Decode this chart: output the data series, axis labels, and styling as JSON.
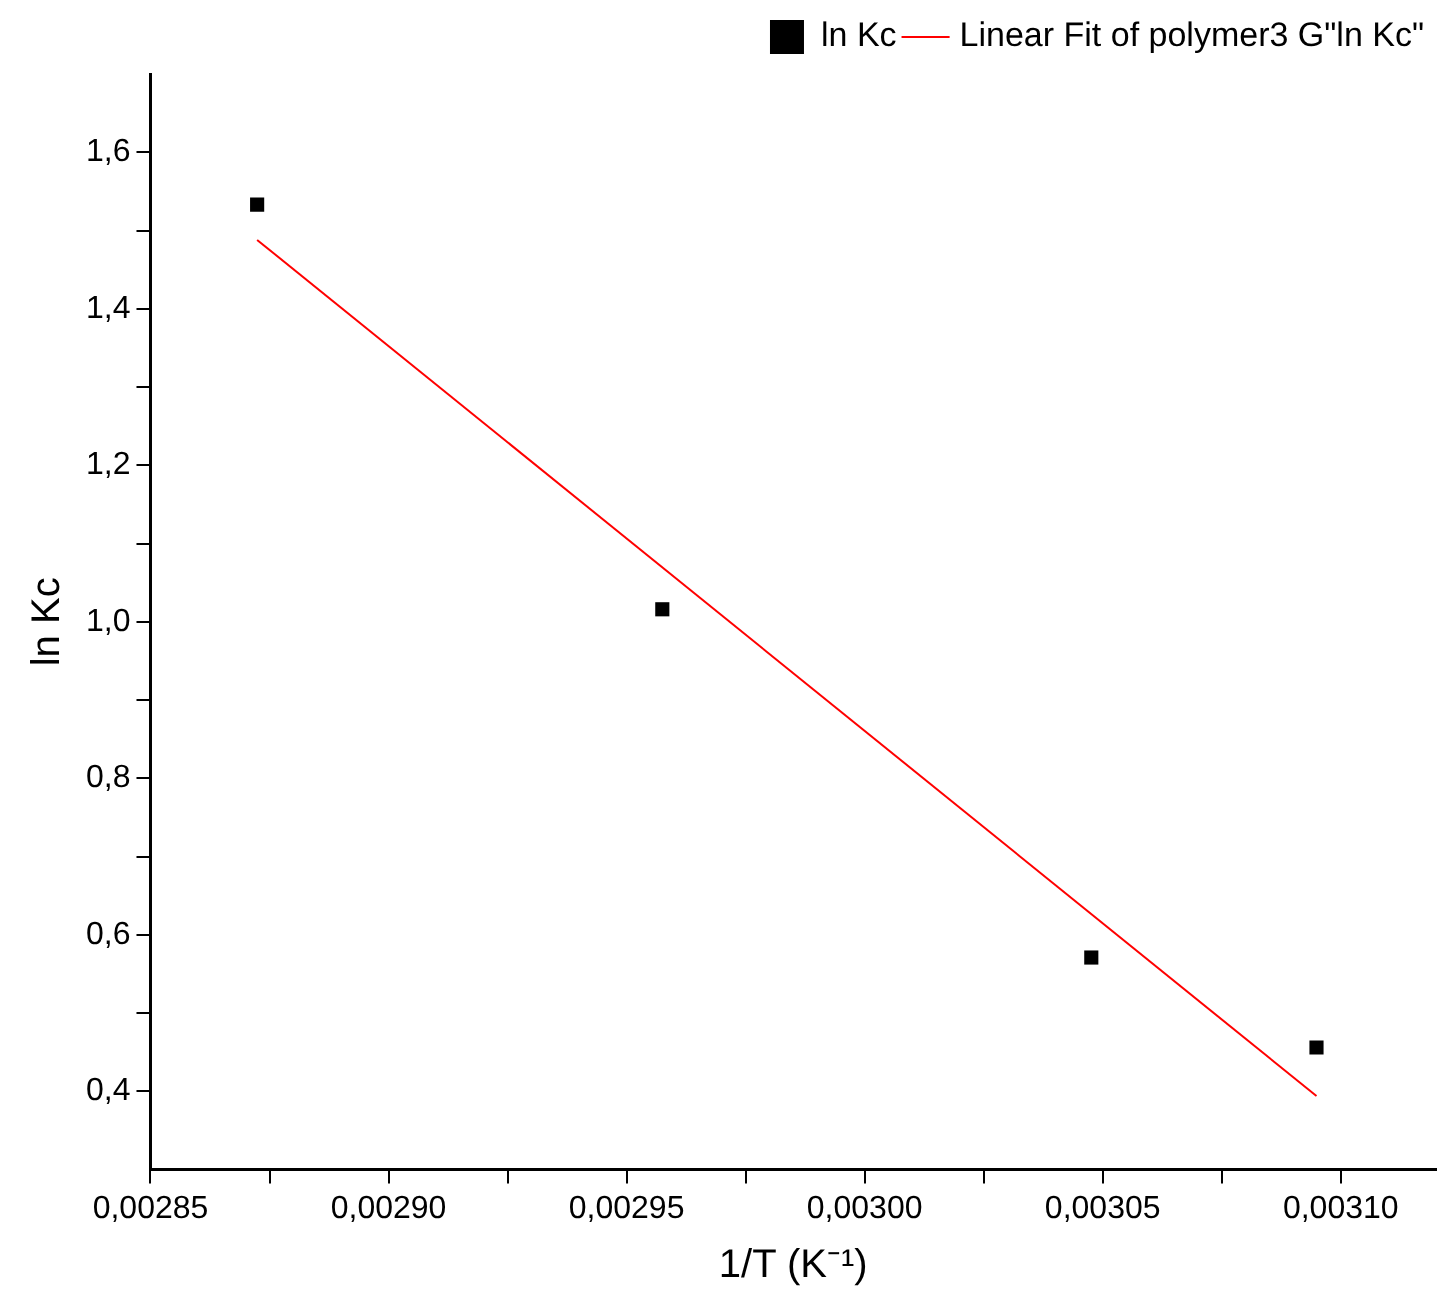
{
  "chart_data": {
    "type": "scatter",
    "xlabel": "1/T (K⁻¹)",
    "ylabel": "ln Kc",
    "xlim": [
      0.00285,
      0.00312
    ],
    "ylim": [
      0.3,
      1.7
    ],
    "xticks": [
      {
        "value": 0.00285,
        "label": "0,00285"
      },
      {
        "value": 0.002875,
        "label": null
      },
      {
        "value": 0.0029,
        "label": "0,00290"
      },
      {
        "value": 0.002925,
        "label": null
      },
      {
        "value": 0.00295,
        "label": "0,00295"
      },
      {
        "value": 0.002975,
        "label": null
      },
      {
        "value": 0.003,
        "label": "0,00300"
      },
      {
        "value": 0.003025,
        "label": null
      },
      {
        "value": 0.00305,
        "label": "0,00305"
      },
      {
        "value": 0.003075,
        "label": null
      },
      {
        "value": 0.0031,
        "label": "0,00310"
      }
    ],
    "yticks": [
      {
        "value": 0.4,
        "label": "0,4"
      },
      {
        "value": 0.5,
        "label": null
      },
      {
        "value": 0.6,
        "label": "0,6"
      },
      {
        "value": 0.7,
        "label": null
      },
      {
        "value": 0.8,
        "label": "0,8"
      },
      {
        "value": 0.9,
        "label": null
      },
      {
        "value": 1.0,
        "label": "1,0"
      },
      {
        "value": 1.1,
        "label": null
      },
      {
        "value": 1.2,
        "label": "1,2"
      },
      {
        "value": 1.3,
        "label": null
      },
      {
        "value": 1.4,
        "label": "1,4"
      },
      {
        "value": 1.5,
        "label": null
      },
      {
        "value": 1.6,
        "label": "1,6"
      }
    ],
    "series": [
      {
        "name": "ln Kc",
        "color": "#000000",
        "marker": "square",
        "x": [
          0.0028724,
          0.0029575,
          0.0030476,
          0.0030949
        ],
        "values": [
          1.533,
          1.016,
          0.571,
          0.456
        ]
      },
      {
        "name": "Linear Fit of polymer3 G\"ln Kc\"",
        "type": "line",
        "color": "#ff0000",
        "marker": "none",
        "x": [
          0.0028724,
          0.0030949
        ],
        "values": [
          1.488,
          0.394
        ]
      }
    ],
    "legend": "top right",
    "grid": false
  }
}
